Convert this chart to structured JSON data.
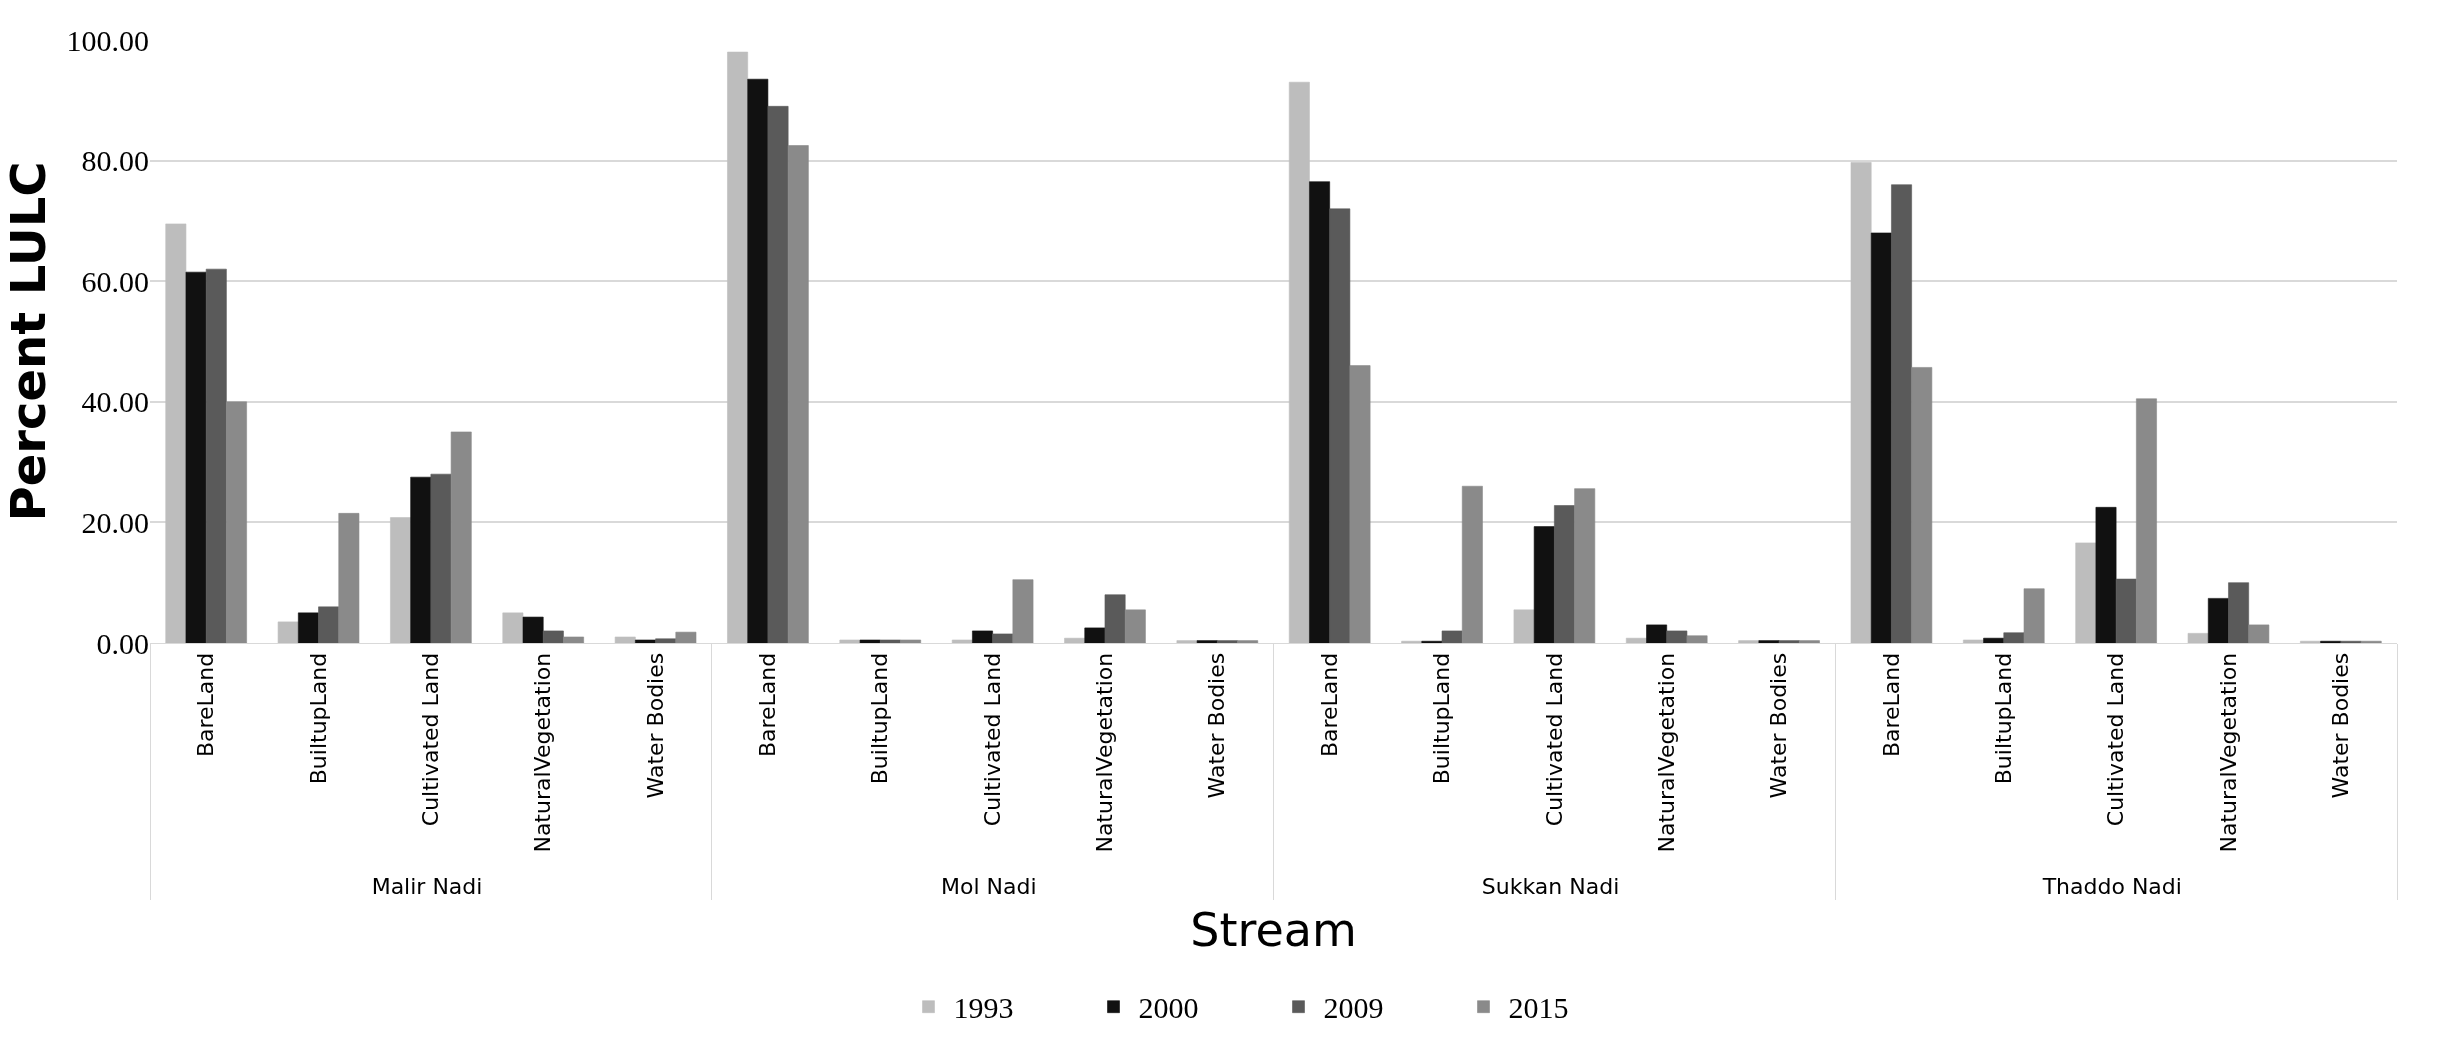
{
  "chart_data": {
    "type": "bar",
    "xlabel": "Stream",
    "ylabel": "Percent LULC",
    "categories": [
      "BareLand",
      "BuiltupLand",
      "Cultivated Land",
      "NaturalVegetation",
      "Water Bodies",
      "BareLand",
      "BuiltupLand",
      "Cultivated Land",
      "NaturalVegetation",
      "Water Bodies",
      "BareLand",
      "BuiltupLand",
      "Cultivated Land",
      "NaturalVegetation",
      "Water Bodies",
      "BareLand",
      "BuiltupLand",
      "Cultivated Land",
      "NaturalVegetation",
      "Water Bodies"
    ],
    "annotations": [
      "Malir Nadi",
      "Mol Nadi",
      "Sukkan Nadi",
      "Thaddo Nadi"
    ],
    "series": [
      {
        "name": "1993",
        "color": "#bdbdbd",
        "values": [
          69.5,
          3.5,
          20.8,
          5,
          1,
          98,
          0.5,
          0.5,
          0.8,
          0.4,
          93,
          0.3,
          5.5,
          0.8,
          0.4,
          79.7,
          0.5,
          16.6,
          1.6,
          0.3
        ]
      },
      {
        "name": "2000",
        "color": "#111111",
        "values": [
          61.5,
          5,
          27.5,
          4.3,
          0.5,
          93.5,
          0.5,
          2,
          2.5,
          0.4,
          76.5,
          0.3,
          19.3,
          3,
          0.4,
          68,
          0.8,
          22.5,
          7.4,
          0.3
        ]
      },
      {
        "name": "2009",
        "color": "#5a5a5a",
        "values": [
          62,
          6,
          28,
          2,
          0.7,
          89,
          0.5,
          1.5,
          8,
          0.4,
          72,
          2,
          22.8,
          2,
          0.4,
          76,
          1.7,
          10.6,
          10,
          0.3
        ]
      },
      {
        "name": "2015",
        "color": "#8a8a8a",
        "values": [
          40,
          21.5,
          35,
          1,
          1.8,
          82.5,
          0.5,
          10.5,
          5.5,
          0.4,
          46,
          26,
          25.6,
          1.2,
          0.4,
          45.7,
          9,
          40.5,
          3,
          0.3
        ]
      }
    ],
    "ylim": [
      0,
      100
    ],
    "yticks": [
      {
        "value": 0,
        "label": "0.00"
      },
      {
        "value": 20,
        "label": "20.00"
      },
      {
        "value": 40,
        "label": "40.00"
      },
      {
        "value": 60,
        "label": "60.00"
      },
      {
        "value": 80,
        "label": "80.00"
      },
      {
        "value": 100,
        "label": "100.00"
      }
    ],
    "grid": "y",
    "legend": "bottom"
  }
}
